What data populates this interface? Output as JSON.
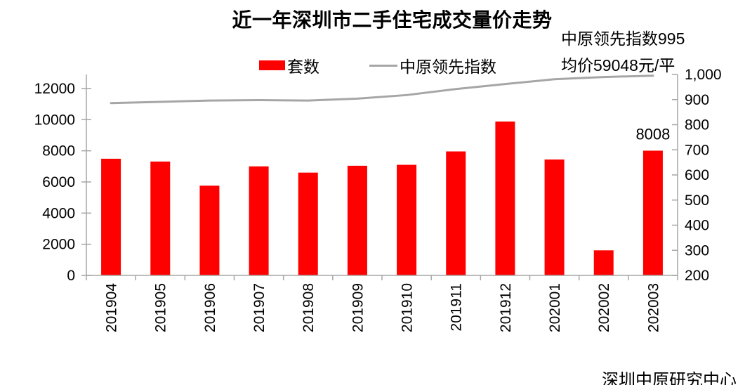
{
  "title": "近一年深圳市二手住宅成交量价走势",
  "annotations": {
    "index_note": "中原领先指数995",
    "price_note": "均价59048元/平"
  },
  "legend": {
    "bar_label": "套数",
    "line_label": "中原领先指数"
  },
  "footer": "深圳中原研究中心",
  "colors": {
    "bar": "#FF0000",
    "line": "#A6A6A6",
    "axis": "#A6A6A6",
    "text": "#000000",
    "background": "#FFFFFF"
  },
  "chart_data": {
    "type": "combo",
    "title": "近一年深圳市二手住宅成交量价走势",
    "categories": [
      "201904",
      "201905",
      "201906",
      "201907",
      "201908",
      "201909",
      "201910",
      "201911",
      "201912",
      "202001",
      "202002",
      "202003"
    ],
    "series": [
      {
        "name": "套数",
        "type": "bar",
        "axis": "left",
        "color": "#FF0000",
        "values": [
          7490,
          7310,
          5760,
          7000,
          6600,
          7040,
          7100,
          7960,
          9880,
          7440,
          1610,
          8008
        ]
      },
      {
        "name": "中原领先指数",
        "type": "line",
        "axis": "right",
        "color": "#A6A6A6",
        "values": [
          886,
          891,
          896,
          898,
          896,
          904,
          918,
          942,
          962,
          981,
          990,
          995
        ]
      }
    ],
    "left_axis": {
      "min": 0,
      "max": 12900,
      "tick_values": [
        0,
        2000,
        4000,
        6000,
        8000,
        10000,
        12000
      ],
      "tick_labels": [
        "0",
        "2000",
        "4000",
        "6000",
        "8000",
        "10000",
        "12000"
      ]
    },
    "right_axis": {
      "min": 200,
      "max": 1000,
      "tick_values": [
        200,
        300,
        400,
        500,
        600,
        700,
        800,
        900,
        1000
      ],
      "tick_labels": [
        "200",
        "300",
        "400",
        "500",
        "600",
        "700",
        "800",
        "900",
        "1,000"
      ]
    },
    "data_labels": [
      {
        "category_index": 11,
        "series_index": 0,
        "text": "8008"
      }
    ],
    "grid": false,
    "legend_position": "top",
    "x_label_rotation": -90
  }
}
